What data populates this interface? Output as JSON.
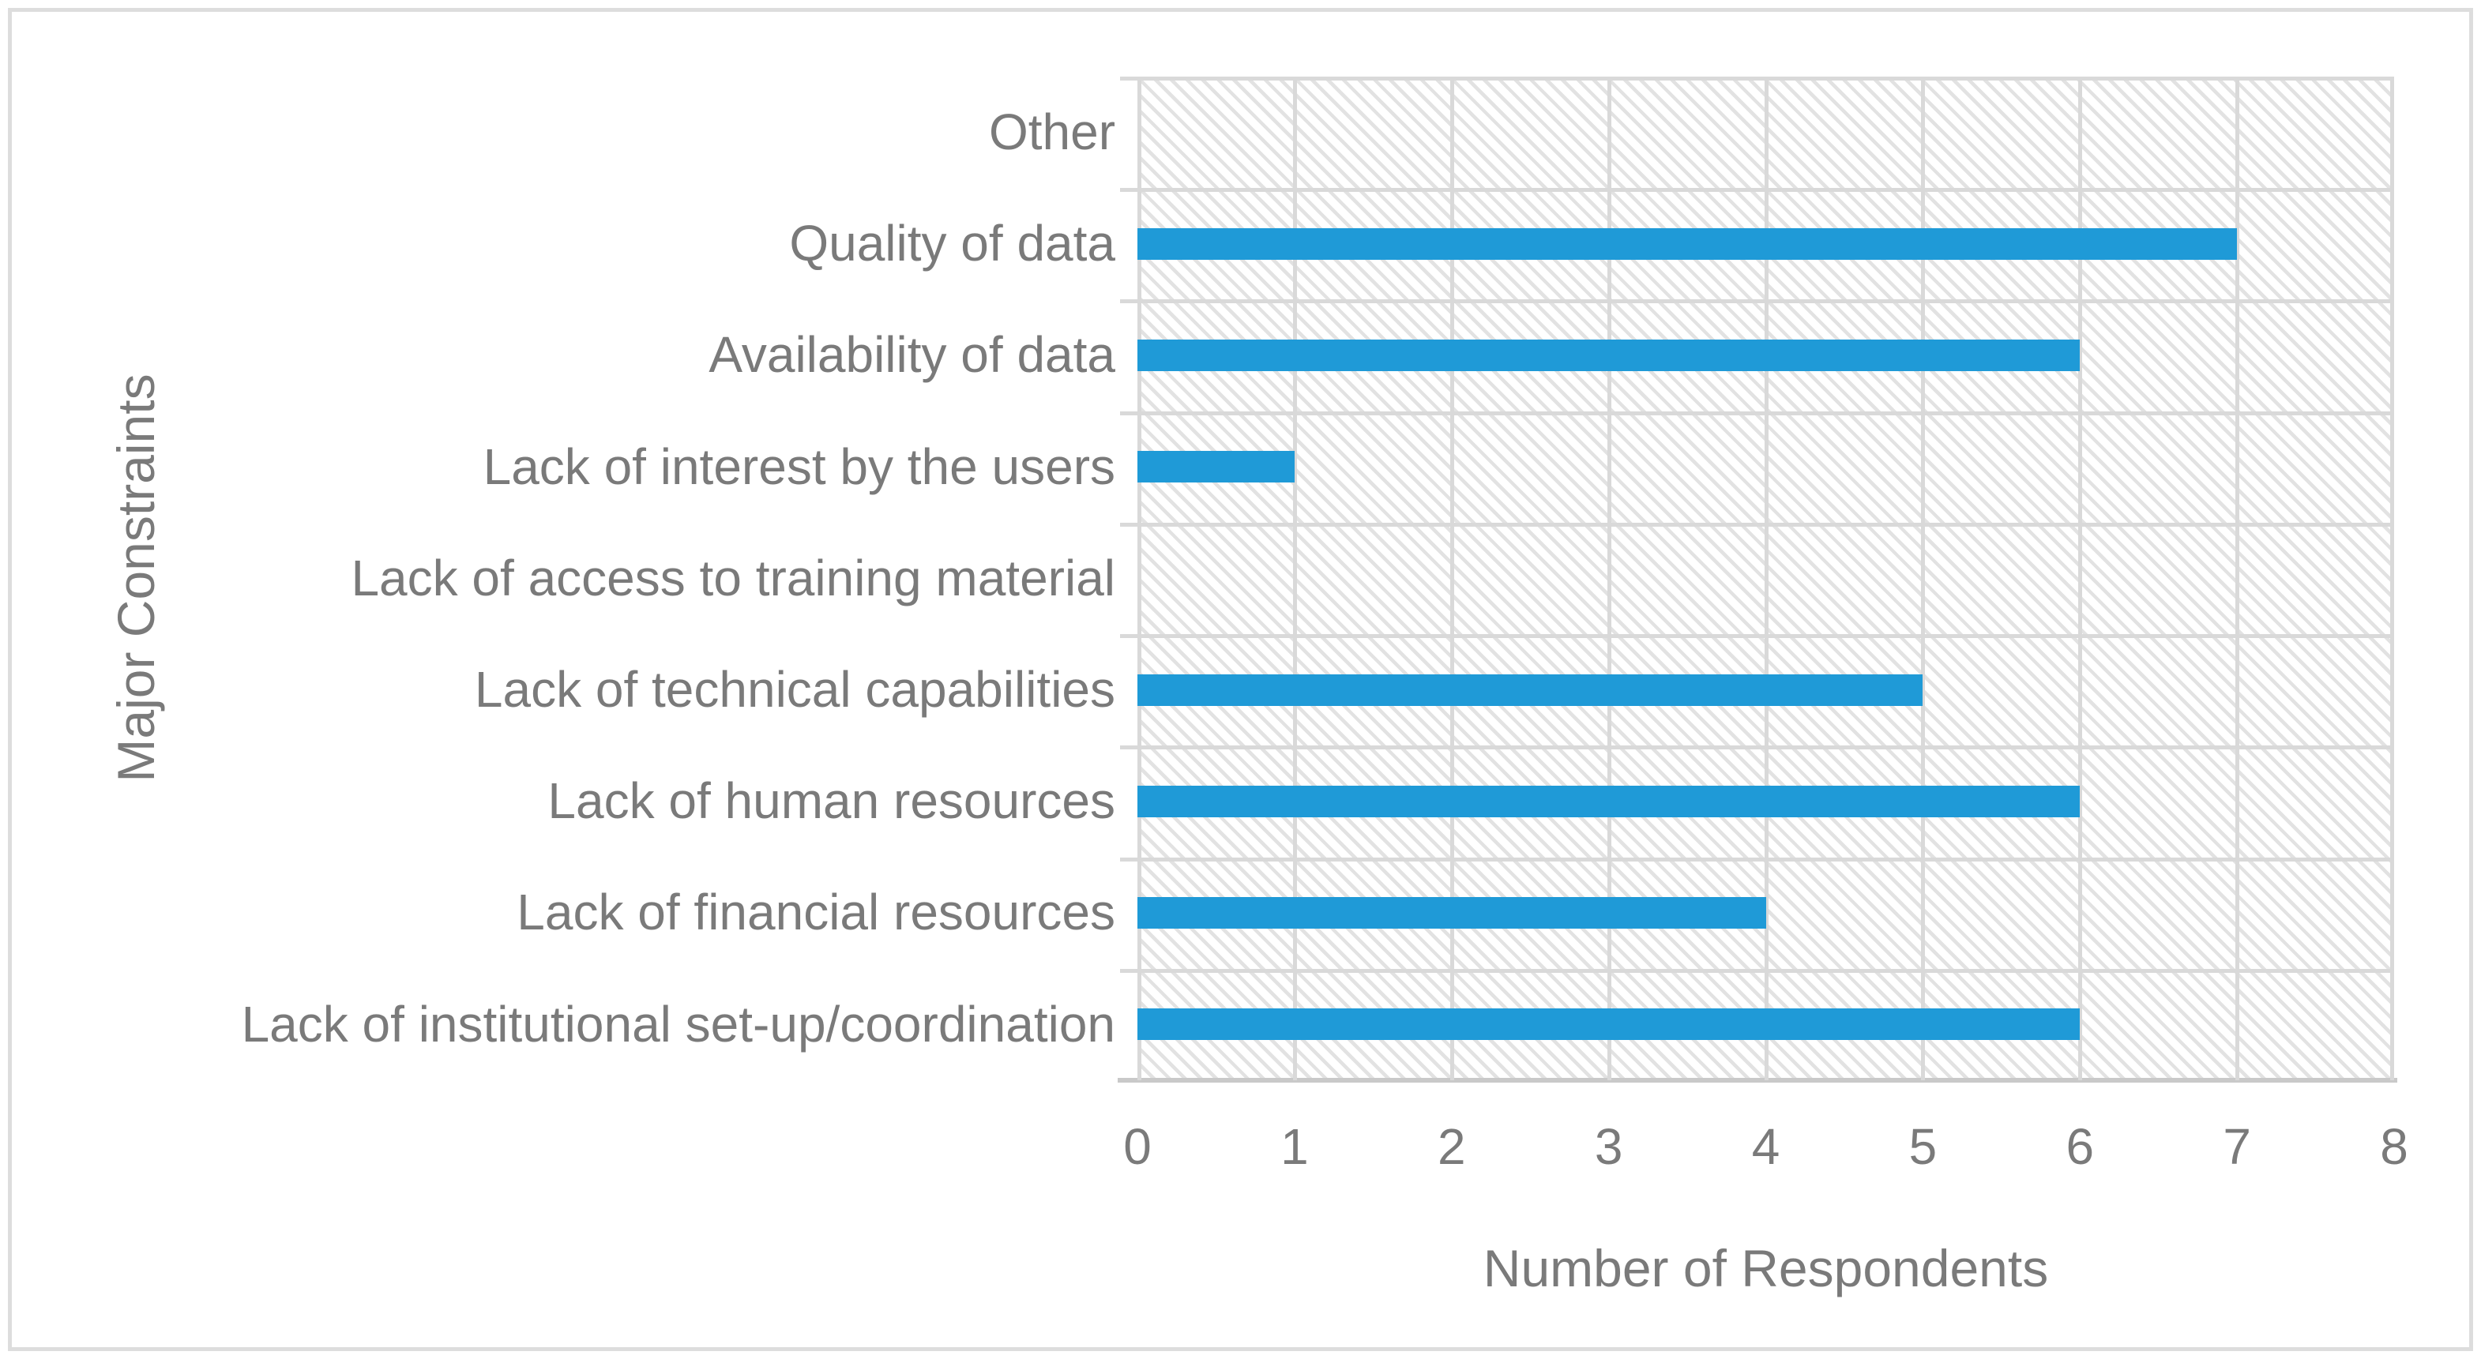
{
  "chart_data": {
    "type": "bar",
    "orientation": "horizontal",
    "categories": [
      "Other",
      "Quality of data",
      "Availability of data",
      "Lack of interest by the users",
      "Lack of access to training material",
      "Lack of technical capabilities",
      "Lack of human resources",
      "Lack of financial resources",
      "Lack of institutional set-up/coordination"
    ],
    "values": [
      0,
      7,
      6,
      1,
      0,
      5,
      6,
      4,
      6
    ],
    "xlabel": "Number of Respondents",
    "ylabel": "Major Constraints",
    "xlim": [
      0,
      8
    ],
    "xticks": [
      0,
      1,
      2,
      3,
      4,
      5,
      6,
      7,
      8
    ],
    "grid": true,
    "legend": "none",
    "plot_background": "light-downward-diagonal-hatch",
    "colors": {
      "bar": "#1F9AD7",
      "gridline": "#D9D9D9",
      "axis_line": "#C9C9C9",
      "text": "#7A7A7A",
      "hatch": "#E2E2E2",
      "frame_border": "#DDDDDD"
    }
  }
}
